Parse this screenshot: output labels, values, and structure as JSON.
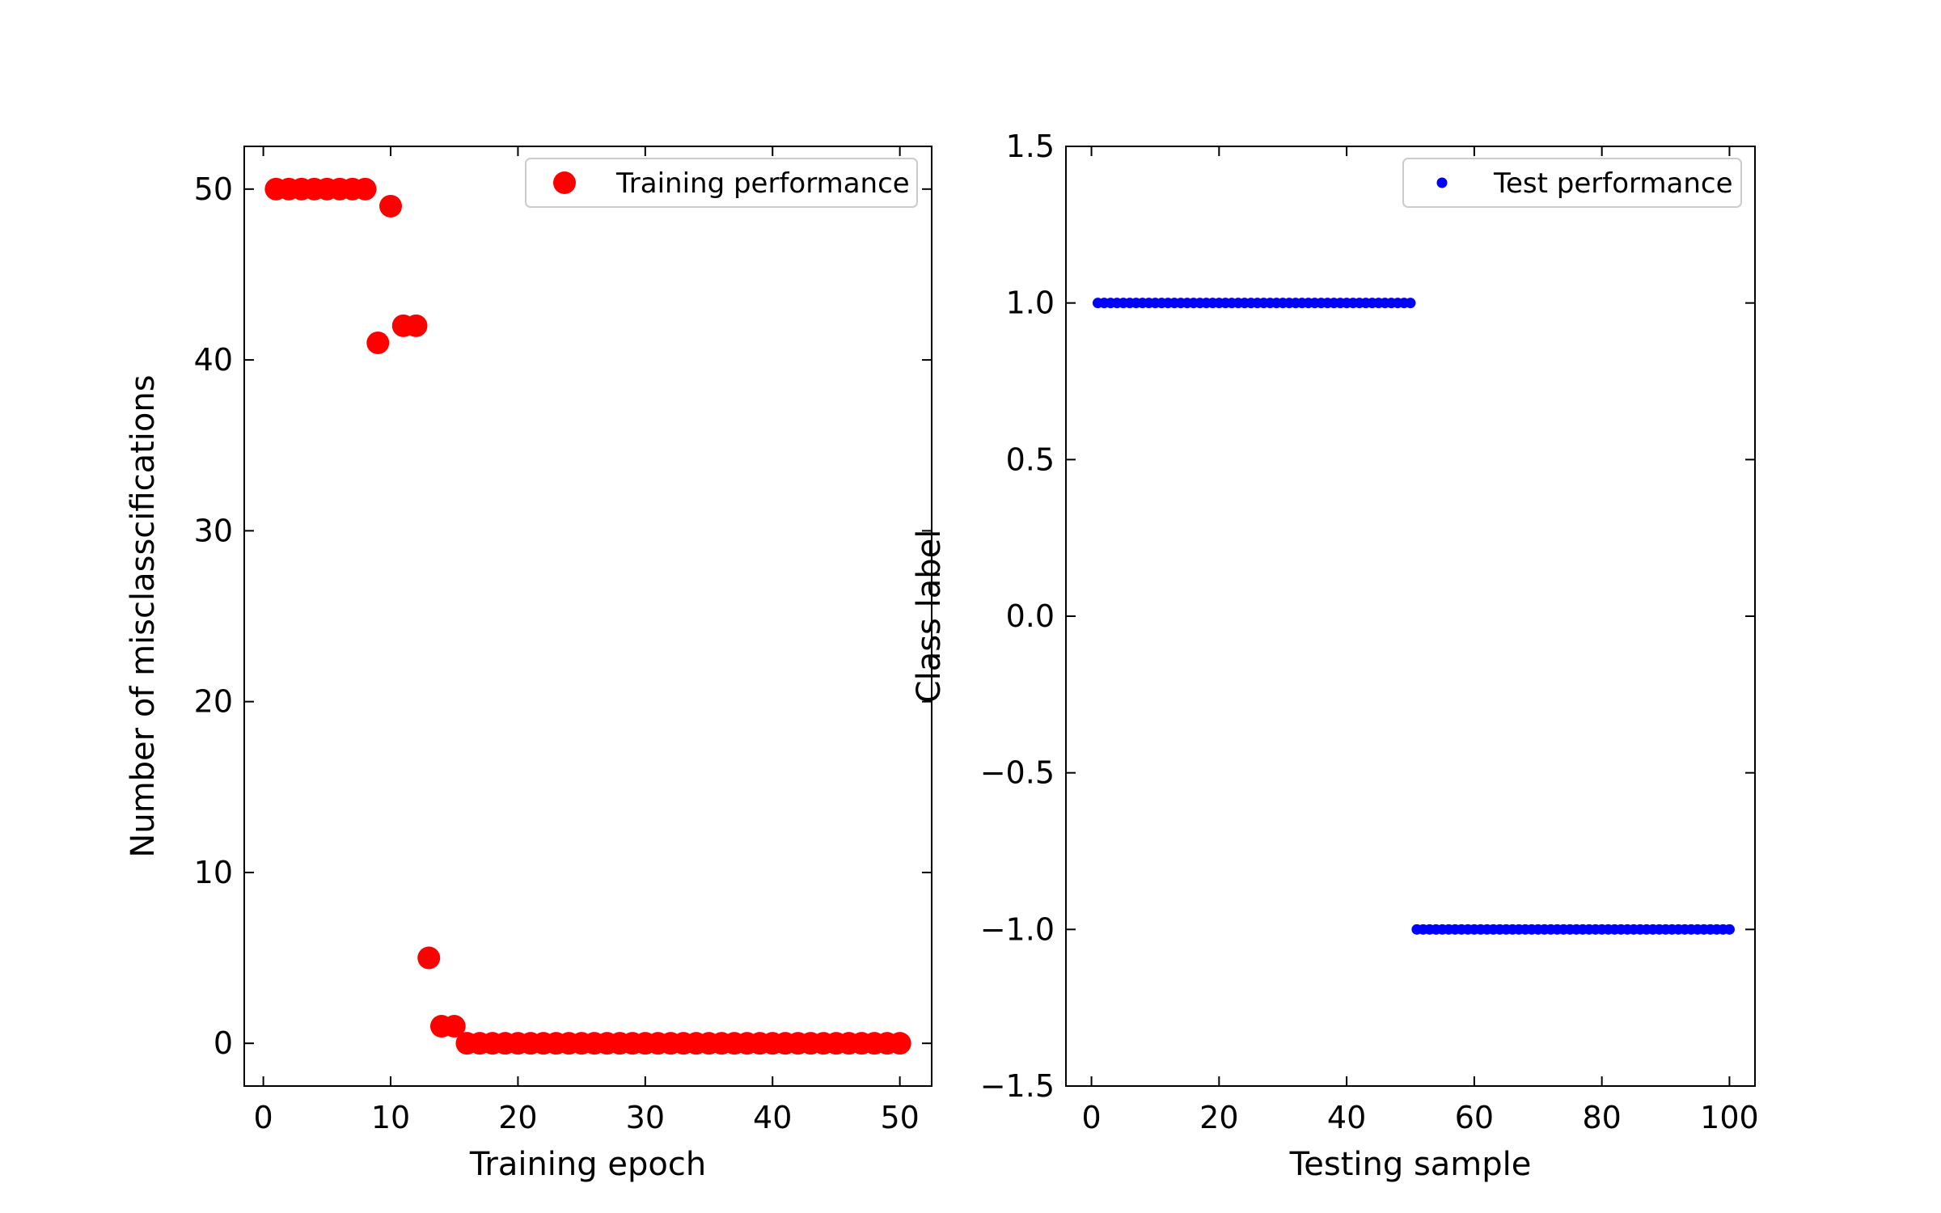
{
  "chart_data": [
    {
      "type": "scatter",
      "title": "",
      "xlabel": "Training epoch",
      "ylabel": "Number of misclasscifications",
      "xlim": [
        -1.5,
        52.5
      ],
      "ylim": [
        -2.5,
        52.5
      ],
      "xticks": [
        0,
        10,
        20,
        30,
        40,
        50
      ],
      "yticks": [
        0,
        10,
        20,
        30,
        40,
        50
      ],
      "xtick_labels": [
        "0",
        "10",
        "20",
        "30",
        "40",
        "50"
      ],
      "ytick_labels": [
        "0",
        "10",
        "20",
        "30",
        "40",
        "50"
      ],
      "grid": false,
      "legend_position": "top-right",
      "series": [
        {
          "name": "Training performance",
          "color": "#ff0000",
          "x": [
            1,
            2,
            3,
            4,
            5,
            6,
            7,
            8,
            9,
            10,
            11,
            12,
            13,
            14,
            15,
            16,
            17,
            18,
            19,
            20,
            21,
            22,
            23,
            24,
            25,
            26,
            27,
            28,
            29,
            30,
            31,
            32,
            33,
            34,
            35,
            36,
            37,
            38,
            39,
            40,
            41,
            42,
            43,
            44,
            45,
            46,
            47,
            48,
            49,
            50
          ],
          "y": [
            50,
            50,
            50,
            50,
            50,
            50,
            50,
            50,
            41,
            49,
            42,
            42,
            5,
            1,
            1,
            0,
            0,
            0,
            0,
            0,
            0,
            0,
            0,
            0,
            0,
            0,
            0,
            0,
            0,
            0,
            0,
            0,
            0,
            0,
            0,
            0,
            0,
            0,
            0,
            0,
            0,
            0,
            0,
            0,
            0,
            0,
            0,
            0,
            0,
            0
          ]
        }
      ]
    },
    {
      "type": "scatter",
      "title": "",
      "xlabel": "Testing sample",
      "ylabel": "Class label",
      "xlim": [
        -4,
        104
      ],
      "ylim": [
        -1.5,
        1.5
      ],
      "xticks": [
        0,
        20,
        40,
        60,
        80,
        100
      ],
      "yticks": [
        -1.5,
        -1.0,
        -0.5,
        0.0,
        0.5,
        1.0,
        1.5
      ],
      "xtick_labels": [
        "0",
        "20",
        "40",
        "60",
        "80",
        "100"
      ],
      "ytick_labels": [
        "−1.5",
        "−1.0",
        "−0.5",
        "0.0",
        "0.5",
        "1.0",
        "1.5"
      ],
      "grid": false,
      "legend_position": "top-right",
      "series": [
        {
          "name": "Test performance",
          "color": "#0000ff",
          "x_start": 1,
          "x_end": 100,
          "y": [
            1,
            1,
            1,
            1,
            1,
            1,
            1,
            1,
            1,
            1,
            1,
            1,
            1,
            1,
            1,
            1,
            1,
            1,
            1,
            1,
            1,
            1,
            1,
            1,
            1,
            1,
            1,
            1,
            1,
            1,
            1,
            1,
            1,
            1,
            1,
            1,
            1,
            1,
            1,
            1,
            1,
            1,
            1,
            1,
            1,
            1,
            1,
            1,
            1,
            1,
            -1,
            -1,
            -1,
            -1,
            -1,
            -1,
            -1,
            -1,
            -1,
            -1,
            -1,
            -1,
            -1,
            -1,
            -1,
            -1,
            -1,
            -1,
            -1,
            -1,
            -1,
            -1,
            -1,
            -1,
            -1,
            -1,
            -1,
            -1,
            -1,
            -1,
            -1,
            -1,
            -1,
            -1,
            -1,
            -1,
            -1,
            -1,
            -1,
            -1,
            -1,
            -1,
            -1,
            -1,
            -1,
            -1,
            -1,
            -1,
            -1,
            -1
          ]
        }
      ]
    }
  ]
}
